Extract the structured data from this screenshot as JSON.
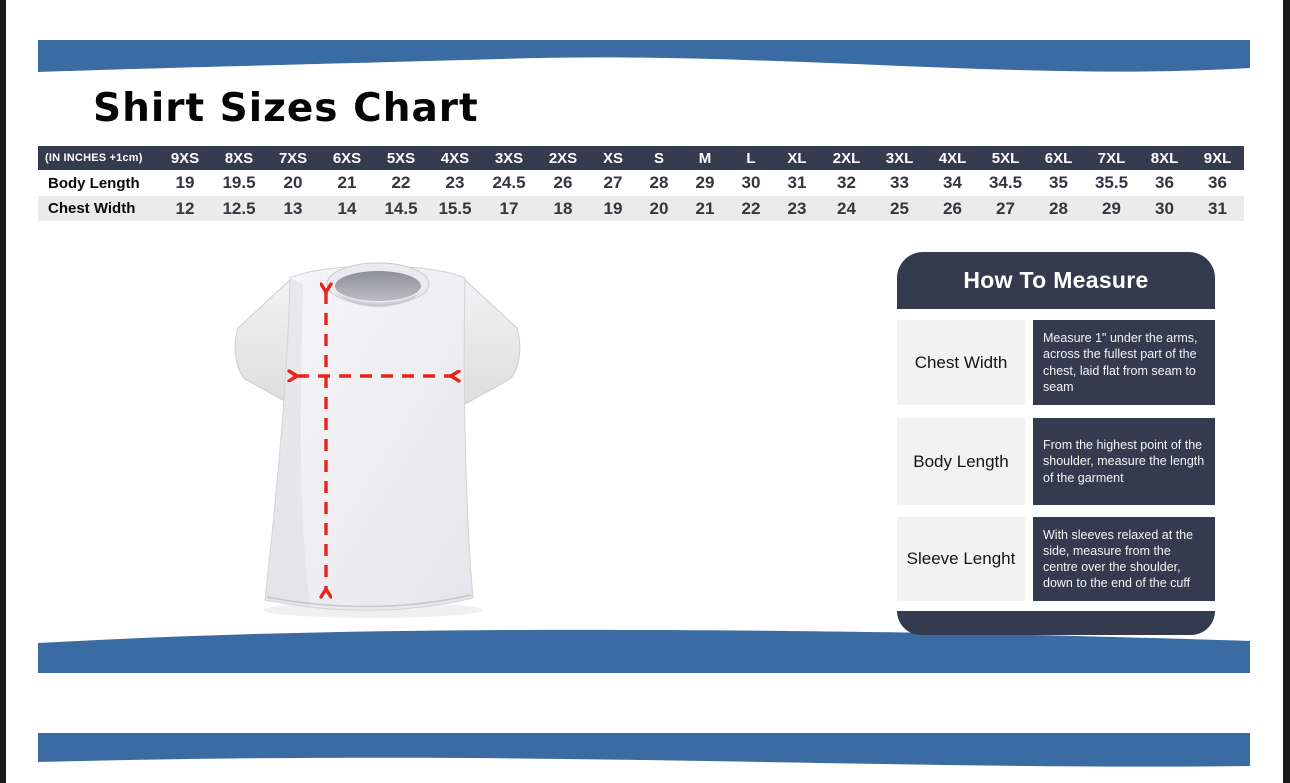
{
  "page": {
    "title": "Shirt Sizes Chart"
  },
  "size_table": {
    "unit_label": "(IN INCHES +1cm)",
    "sizes": [
      "9XS",
      "8XS",
      "7XS",
      "6XS",
      "5XS",
      "4XS",
      "3XS",
      "2XS",
      "XS",
      "S",
      "M",
      "L",
      "XL",
      "2XL",
      "3XL",
      "4XL",
      "5XL",
      "6XL",
      "7XL",
      "8XL",
      "9XL"
    ],
    "rows": [
      {
        "label": "Body Length",
        "values": [
          "19",
          "19.5",
          "20",
          "21",
          "22",
          "23",
          "24.5",
          "26",
          "27",
          "28",
          "29",
          "30",
          "31",
          "32",
          "33",
          "34",
          "34.5",
          "35",
          "35.5",
          "36",
          "36"
        ]
      },
      {
        "label": "Chest Width",
        "values": [
          "12",
          "12.5",
          "13",
          "14",
          "14.5",
          "15.5",
          "17",
          "18",
          "19",
          "20",
          "21",
          "22",
          "23",
          "24",
          "25",
          "26",
          "27",
          "28",
          "29",
          "30",
          "31"
        ]
      }
    ]
  },
  "how_to_measure": {
    "title": "How To Measure",
    "rows": [
      {
        "label": "Chest Width",
        "desc": "Measure 1\" under the arms, across the fullest part of the chest, laid flat from seam to seam"
      },
      {
        "label": "Body Length",
        "desc": "From the highest point of the shoulder, measure the length of the garment"
      },
      {
        "label": "Sleeve Lenght",
        "desc": "With sleeves relaxed at the side,  measure from the centre over the shoulder, down to the end of the cuff"
      }
    ]
  },
  "colors": {
    "band_blue": "#3a6ba3",
    "panel_navy": "#343b4f",
    "arrow_red": "#e8231d",
    "row_stripe": "#ebebeb"
  }
}
